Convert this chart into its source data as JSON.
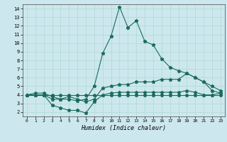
{
  "title": "",
  "xlabel": "Humidex (Indice chaleur)",
  "bg_color": "#cce8ee",
  "line_color": "#1a6b5a",
  "grid_color": "#b0d8d0",
  "xlim": [
    -0.5,
    23.5
  ],
  "ylim": [
    1.5,
    14.5
  ],
  "yticks": [
    2,
    3,
    4,
    5,
    6,
    7,
    8,
    9,
    10,
    11,
    12,
    13,
    14
  ],
  "xticks": [
    0,
    1,
    2,
    3,
    4,
    5,
    6,
    7,
    8,
    9,
    10,
    11,
    12,
    13,
    14,
    15,
    16,
    17,
    18,
    19,
    20,
    21,
    22,
    23
  ],
  "line1_x": [
    0,
    1,
    2,
    3,
    4,
    5,
    6,
    7,
    8,
    9,
    10,
    11,
    12,
    13,
    14,
    15,
    16,
    17,
    18,
    19,
    20,
    21,
    22,
    23
  ],
  "line1_y": [
    4.0,
    4.0,
    4.0,
    3.5,
    3.5,
    3.5,
    3.3,
    3.5,
    5.0,
    8.8,
    10.8,
    14.2,
    11.8,
    12.6,
    10.2,
    9.8,
    8.2,
    7.2,
    6.8,
    6.5,
    6.0,
    5.5,
    4.5,
    4.2
  ],
  "line2_x": [
    0,
    1,
    2,
    3,
    4,
    5,
    6,
    7,
    8,
    9,
    10,
    11,
    12,
    13,
    14,
    15,
    16,
    17,
    18,
    19,
    20,
    21,
    22,
    23
  ],
  "line2_y": [
    4.0,
    4.2,
    4.2,
    3.8,
    3.5,
    3.8,
    3.5,
    3.2,
    3.5,
    4.8,
    5.0,
    5.2,
    5.2,
    5.5,
    5.5,
    5.5,
    5.8,
    5.8,
    5.8,
    6.5,
    6.0,
    5.5,
    5.0,
    4.5
  ],
  "line3_x": [
    0,
    1,
    2,
    3,
    4,
    5,
    6,
    7,
    8,
    9,
    10,
    11,
    12,
    13,
    14,
    15,
    16,
    17,
    18,
    19,
    20,
    21,
    22,
    23
  ],
  "line3_y": [
    4.0,
    4.0,
    4.0,
    2.8,
    2.5,
    2.2,
    2.2,
    1.9,
    3.2,
    4.0,
    4.2,
    4.3,
    4.3,
    4.3,
    4.3,
    4.3,
    4.3,
    4.3,
    4.3,
    4.5,
    4.3,
    4.0,
    4.0,
    4.2
  ],
  "line4_x": [
    0,
    1,
    2,
    3,
    4,
    5,
    6,
    7,
    8,
    9,
    10,
    11,
    12,
    13,
    14,
    15,
    16,
    17,
    18,
    19,
    20,
    21,
    22,
    23
  ],
  "line4_y": [
    4.0,
    4.0,
    4.0,
    4.0,
    4.0,
    4.0,
    4.0,
    4.0,
    4.0,
    4.0,
    4.0,
    4.0,
    4.0,
    4.0,
    4.0,
    4.0,
    4.0,
    4.0,
    4.0,
    4.0,
    4.0,
    4.0,
    4.0,
    4.0
  ]
}
